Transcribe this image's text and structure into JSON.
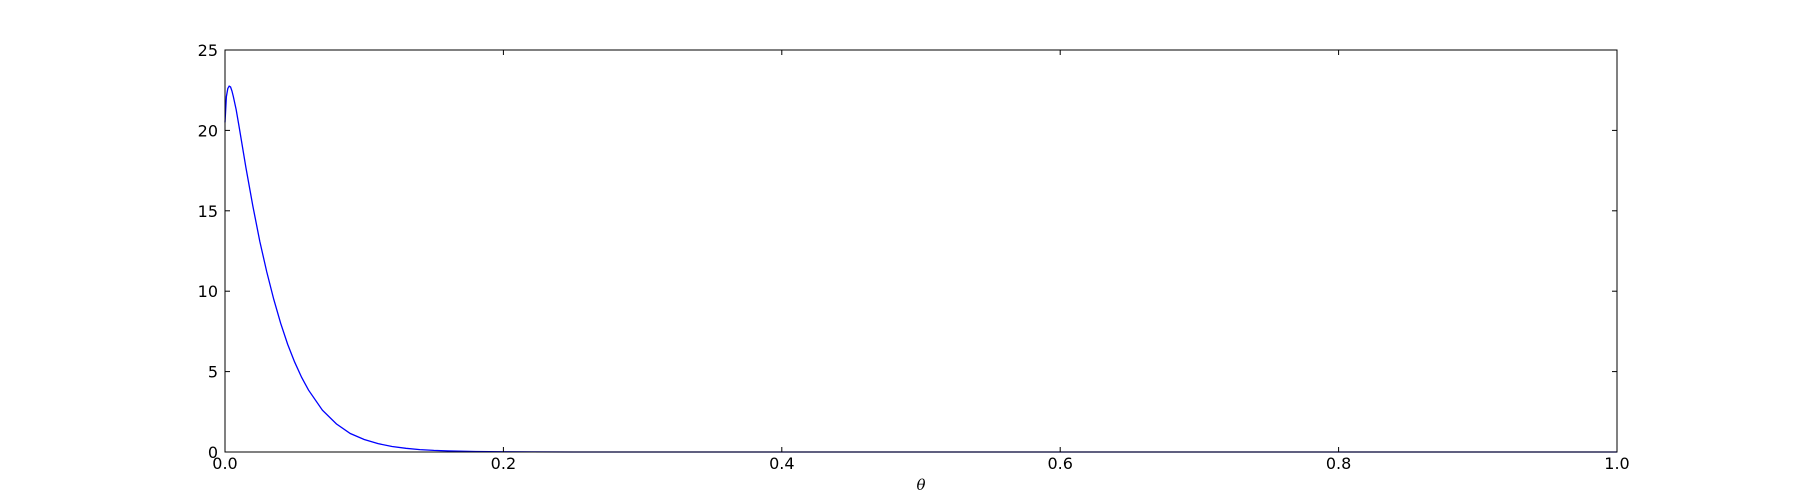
{
  "chart_data": {
    "type": "line",
    "title": "",
    "xlabel": "θ",
    "ylabel": "",
    "xlim": [
      0.0,
      1.0
    ],
    "ylim": [
      0,
      25
    ],
    "x_ticks": [
      0.0,
      0.2,
      0.4,
      0.6,
      0.8,
      1.0
    ],
    "x_tick_labels": [
      "0.0",
      "0.2",
      "0.4",
      "0.6",
      "0.8",
      "1.0"
    ],
    "y_ticks": [
      0,
      5,
      10,
      15,
      20,
      25
    ],
    "y_tick_labels": [
      "0",
      "5",
      "10",
      "15",
      "20",
      "25"
    ],
    "grid": false,
    "legend": null,
    "series": [
      {
        "color": "#0000ff",
        "x": [
          0.0,
          0.001,
          0.002,
          0.003,
          0.004,
          0.005,
          0.006,
          0.008,
          0.01,
          0.015,
          0.02,
          0.025,
          0.03,
          0.035,
          0.04,
          0.045,
          0.05,
          0.055,
          0.06,
          0.07,
          0.08,
          0.09,
          0.1,
          0.11,
          0.12,
          0.13,
          0.14,
          0.15,
          0.16,
          0.18,
          0.2,
          0.22,
          0.25,
          0.3,
          0.35,
          0.4,
          0.5,
          0.6,
          0.7,
          0.8,
          0.9,
          1.0
        ],
        "y": [
          20.5,
          22.1,
          22.6,
          22.75,
          22.7,
          22.45,
          22.1,
          21.3,
          20.3,
          17.7,
          15.3,
          13.1,
          11.2,
          9.5,
          8.0,
          6.7,
          5.6,
          4.65,
          3.85,
          2.6,
          1.75,
          1.15,
          0.78,
          0.52,
          0.34,
          0.23,
          0.15,
          0.1,
          0.07,
          0.03,
          0.015,
          0.007,
          0.002,
          0.0005,
          0.0001,
          0.0,
          0.0,
          0.0,
          0.0,
          0.0,
          0.0,
          0.0
        ]
      }
    ]
  }
}
